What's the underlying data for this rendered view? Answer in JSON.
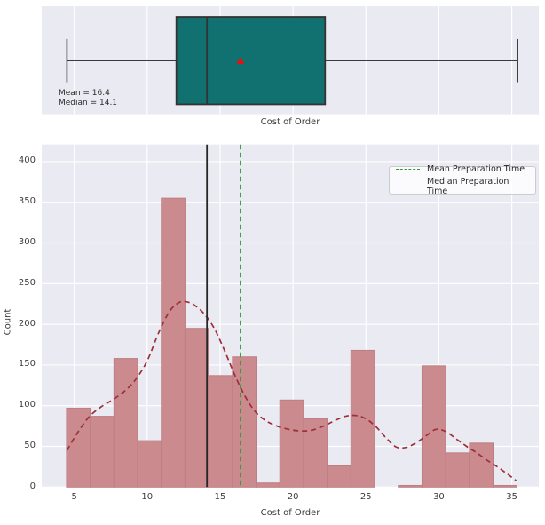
{
  "figure": {
    "background": "#ffffff",
    "axes_background": "#eaeaf2",
    "grid_color": "#ffffff",
    "text_color": "#3d3d3d"
  },
  "chart_data": [
    {
      "type": "boxplot",
      "orientation": "horizontal",
      "xlabel": "Cost of Order",
      "xlim": [
        2.77,
        36.85
      ],
      "gridlines_x": [
        5,
        10,
        15,
        20,
        25,
        30,
        35
      ],
      "stats": {
        "whisker_min": 4.5,
        "q1": 12.0,
        "median": 14.1,
        "q3": 22.2,
        "whisker_max": 35.4,
        "mean": 16.4
      },
      "annotation": {
        "line1": "Mean = 16.4",
        "line2": "Median = 14.1"
      },
      "colors": {
        "box_fill": "#107170",
        "box_edge": "#333333",
        "whisker": "#3a3a3a",
        "median_line": "#333333",
        "mean_marker": "#e51111"
      }
    },
    {
      "type": "bar",
      "subtype": "histogram-with-kde",
      "xlabel": "Cost of Order",
      "ylabel": "Count",
      "xlim": [
        2.77,
        36.85
      ],
      "ylim": [
        0,
        421
      ],
      "x_ticks": [
        5,
        10,
        15,
        20,
        25,
        30,
        35
      ],
      "y_ticks": [
        0,
        50,
        100,
        150,
        200,
        250,
        300,
        350,
        400
      ],
      "bins": {
        "start": 4.47,
        "width": 1.625
      },
      "counts": [
        97,
        87,
        158,
        57,
        355,
        195,
        137,
        160,
        5,
        107,
        84,
        26,
        168,
        0,
        2,
        149,
        42,
        54,
        2
      ],
      "kde_x": [
        4.5,
        5.2,
        6.0,
        6.8,
        7.6,
        8.4,
        9.2,
        10.0,
        10.8,
        11.5,
        12.1,
        12.6,
        13.2,
        13.9,
        14.6,
        15.3,
        16.0,
        16.7,
        17.4,
        18.1,
        18.9,
        19.7,
        20.5,
        21.3,
        22.1,
        22.9,
        23.6,
        24.3,
        25.0,
        25.7,
        26.4,
        27.1,
        27.8,
        28.5,
        29.2,
        29.8,
        30.5,
        31.2,
        31.9,
        32.6,
        33.3,
        34.0,
        34.7,
        35.3
      ],
      "kde_y": [
        45,
        66,
        86,
        98,
        107,
        117,
        132,
        155,
        190,
        215,
        226,
        228,
        224,
        213,
        195,
        168,
        138,
        112,
        93,
        82,
        75,
        71,
        69,
        70,
        75,
        82,
        87,
        88,
        84,
        74,
        60,
        49,
        49,
        55,
        64,
        71,
        68,
        59,
        50,
        42,
        33,
        25,
        16,
        8
      ],
      "mean_line": {
        "x": 16.4,
        "label": "Mean Preparation Time",
        "color": "#349a3c",
        "dashed": true
      },
      "median_line": {
        "x": 14.1,
        "label": "Median Preparation Time",
        "color": "#262626",
        "dashed": false
      },
      "colors": {
        "bar_fill": "#ca8a8e",
        "bar_edge": "#bd7e84",
        "kde": "#9e3038"
      }
    }
  ],
  "legend": {
    "entries": [
      {
        "label": "Mean Preparation Time",
        "color": "#349a3c",
        "dash": true
      },
      {
        "label": "Median Preparation Time",
        "color": "#262626",
        "dash": false
      }
    ]
  }
}
